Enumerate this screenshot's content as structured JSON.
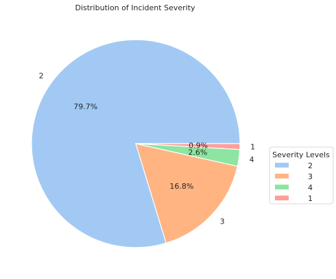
{
  "chart_data": {
    "type": "pie",
    "title": "Distribution of Incident Severity",
    "legend_title": "Severity Levels",
    "legend_position": "right",
    "slices": [
      {
        "label": "2",
        "value": 79.7,
        "pct_text": "79.7%",
        "color": "#a1c9f4"
      },
      {
        "label": "3",
        "value": 16.8,
        "pct_text": "16.8%",
        "color": "#ffb482"
      },
      {
        "label": "4",
        "value": 2.6,
        "pct_text": "2.6%",
        "color": "#8de5a1"
      },
      {
        "label": "1",
        "value": 0.9,
        "pct_text": "0.9%",
        "color": "#ff9f9b"
      }
    ]
  }
}
